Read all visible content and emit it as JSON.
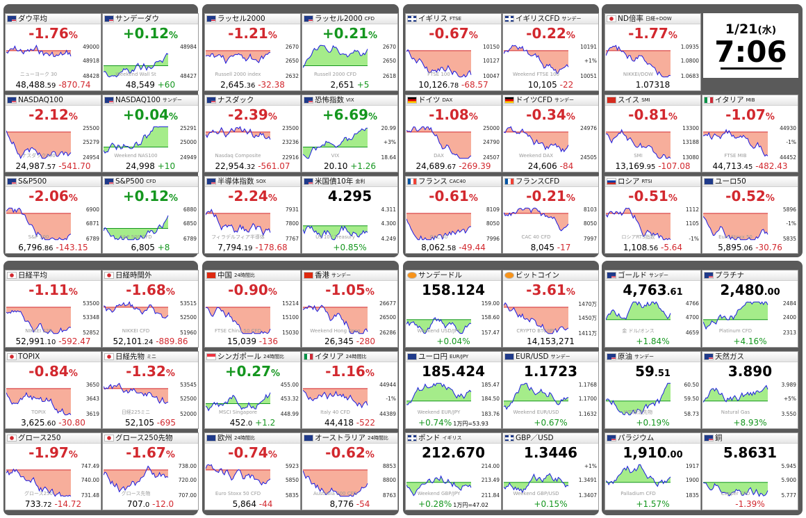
{
  "clock": {
    "date": "1/21",
    "weekday": "(水)",
    "time": "7:06"
  },
  "colors": {
    "up": "#14961e",
    "down": "#d2282e",
    "fill_up": "#9bea7d",
    "fill_down": "#f6a590",
    "line": "#1a1ae0",
    "panel": "#5a5a5a"
  },
  "tiles": [
    {
      "name": "ダウ平均",
      "sub": "",
      "flag": "us",
      "pct": "-1.76",
      "dir": "down",
      "price": "48,488",
      "dec": ".59",
      "chg": "-870.74",
      "ticks": [
        "49000",
        "48918",
        "48428"
      ],
      "watermark": "ニューヨーク 30"
    },
    {
      "name": "サンデーダウ",
      "sub": "",
      "flag": "us",
      "pct": "+0.12",
      "dir": "up",
      "price": "48,549",
      "dec": "",
      "chg": "+60",
      "ticks": [
        "48984",
        "",
        "48427"
      ],
      "watermark": "Weekend Wall St"
    },
    {
      "name": "ラッセル2000",
      "sub": "",
      "flag": "us",
      "pct": "-1.21",
      "dir": "down",
      "price": "2,645",
      "dec": ".36",
      "chg": "-32.38",
      "ticks": [
        "2670",
        "2650",
        "2632"
      ],
      "watermark": "Russell 2000 index"
    },
    {
      "name": "ラッセル2000",
      "sub": "CFD",
      "flag": "us",
      "pct": "+0.21",
      "dir": "up",
      "price": "2,651",
      "dec": "",
      "chg": "+5",
      "ticks": [
        "2670",
        "2650",
        "2618"
      ],
      "watermark": "Russell 2000 CFD"
    },
    {
      "name": "イギリス",
      "sub": "FTSE",
      "flag": "uk",
      "pct": "-0.67",
      "dir": "down",
      "price": "10,126",
      "dec": ".78",
      "chg": "-68.57",
      "ticks": [
        "10150",
        "10127",
        "10047"
      ],
      "watermark": "FTSE 100"
    },
    {
      "name": "イギリスCFD",
      "sub": "サンデー",
      "flag": "uk",
      "pct": "-0.22",
      "dir": "down",
      "price": "10,105",
      "dec": "",
      "chg": "-22",
      "ticks": [
        "10191",
        "+1%",
        "10051"
      ],
      "watermark": "Weekend FTSE 100"
    },
    {
      "name": "ND倍率",
      "sub": "日経÷DOW",
      "flag": "jp",
      "pct": "-1.77",
      "dir": "down",
      "price": "1.07318",
      "dec": "",
      "chg": "",
      "ticks": [
        "1.0935",
        "1.0800",
        "1.0683"
      ],
      "watermark": "NIKKEI/DOW"
    },
    {
      "name": "NASDAQ100",
      "sub": "",
      "flag": "us",
      "pct": "-2.12",
      "dir": "down",
      "price": "24,987",
      "dec": ".57",
      "chg": "-541.70",
      "ticks": [
        "25500",
        "25279",
        "24954"
      ],
      "watermark": "ナスダック100"
    },
    {
      "name": "NASDAQ100",
      "sub": "サンデー",
      "flag": "us",
      "pct": "+0.04",
      "dir": "up",
      "price": "24,998",
      "dec": "",
      "chg": "+10",
      "ticks": [
        "25291",
        "25000",
        "24949"
      ],
      "watermark": "Weekend NAS100"
    },
    {
      "name": "ナスダック",
      "sub": "",
      "flag": "us",
      "pct": "-2.39",
      "dir": "down",
      "price": "22,954",
      "dec": ".32",
      "chg": "-561.07",
      "ticks": [
        "23500",
        "23236",
        "22916"
      ],
      "watermark": "Nasdaq Composite"
    },
    {
      "name": "恐怖指数",
      "sub": "VIX",
      "flag": "us",
      "pct": "+6.69",
      "dir": "up",
      "price": "20.10",
      "dec": "",
      "chg": "+1.26",
      "ticks": [
        "20.99",
        "+3%",
        "18.64"
      ],
      "watermark": "VIX"
    },
    {
      "name": "ドイツ",
      "sub": "DAX",
      "flag": "de",
      "pct": "-1.08",
      "dir": "down",
      "price": "24,689",
      "dec": ".67",
      "chg": "-269.39",
      "ticks": [
        "25000",
        "24790",
        "24507"
      ],
      "watermark": "DAX"
    },
    {
      "name": "ドイツCFD",
      "sub": "サンデー",
      "flag": "de",
      "pct": "-0.34",
      "dir": "down",
      "price": "24,606",
      "dec": "",
      "chg": "-84",
      "ticks": [
        "24976",
        "",
        "24505"
      ],
      "watermark": "Weekend DAX"
    },
    {
      "name": "スイス",
      "sub": "SMI",
      "flag": "ch",
      "pct": "-0.81",
      "dir": "down",
      "price": "13,169",
      "dec": ".95",
      "chg": "-107.08",
      "ticks": [
        "13300",
        "13188",
        "13080"
      ],
      "watermark": "SMI"
    },
    {
      "name": "イタリア",
      "sub": "MIB",
      "flag": "it",
      "pct": "-1.07",
      "dir": "down",
      "price": "44,713",
      "dec": ".45",
      "chg": "-482.43",
      "ticks": [
        "44930",
        "-1%",
        "44452"
      ],
      "watermark": "FTSE MIB"
    },
    {
      "name": "S&P500",
      "sub": "",
      "flag": "us",
      "pct": "-2.06",
      "dir": "down",
      "price": "6,796",
      "dec": ".86",
      "chg": "-143.15",
      "ticks": [
        "6900",
        "6871",
        "6789"
      ],
      "watermark": "S&P 500"
    },
    {
      "name": "S&P500",
      "sub": "CFD",
      "flag": "us",
      "pct": "+0.12",
      "dir": "up",
      "price": "6,805",
      "dec": "",
      "chg": "+8",
      "ticks": [
        "6880",
        "6850",
        "6789"
      ],
      "watermark": "S&P 500 CFD"
    },
    {
      "name": "半導体指数",
      "sub": "SOX",
      "flag": "us",
      "pct": "-2.24",
      "dir": "down",
      "price": "7,794",
      "dec": ".19",
      "chg": "-178.68",
      "ticks": [
        "7931",
        "7800",
        "7767"
      ],
      "watermark": "フィラデルフィア半導体"
    },
    {
      "name": "米国債10年",
      "sub": "金利",
      "flag": "us",
      "pct": "4.295",
      "dir": "sym",
      "price": "",
      "dec": "",
      "chg": "+0.85",
      "ticks": [
        "4.311",
        "4.300",
        "4.249"
      ],
      "watermark": "US 10Y Treasury"
    },
    {
      "name": "フランス",
      "sub": "CAC40",
      "flag": "fr",
      "pct": "-0.61",
      "dir": "down",
      "price": "8,062",
      "dec": ".58",
      "chg": "-49.44",
      "ticks": [
        "8109",
        "8050",
        "7996"
      ],
      "watermark": "CAC 40"
    },
    {
      "name": "フランスCFD",
      "sub": "",
      "flag": "fr",
      "pct": "-0.21",
      "dir": "down",
      "price": "8,045",
      "dec": "",
      "chg": "-17",
      "ticks": [
        "8103",
        "8050",
        "7997"
      ],
      "watermark": "CAC 40 CFD"
    },
    {
      "name": "ロシア",
      "sub": "RTSI",
      "flag": "ru",
      "pct": "-0.51",
      "dir": "down",
      "price": "1,108",
      "dec": ".56",
      "chg": "-5.64",
      "ticks": [
        "1112",
        "1105",
        "-1%"
      ],
      "watermark": "ロシアRTS指数"
    },
    {
      "name": "ユーロ50",
      "sub": "",
      "flag": "eu",
      "pct": "-0.52",
      "dir": "down",
      "price": "5,895",
      "dec": ".06",
      "chg": "-30.76",
      "ticks": [
        "5896",
        "-1%",
        "5835"
      ],
      "watermark": "Euro Stoxx 50"
    },
    {
      "name": "日経平均",
      "sub": "",
      "flag": "jp",
      "pct": "-1.11",
      "dir": "down",
      "price": "52,991",
      "dec": ".10",
      "chg": "-592.47",
      "ticks": [
        "53500",
        "53348",
        "52852"
      ],
      "watermark": "NIKKEI 225"
    },
    {
      "name": "日経時間外",
      "sub": "",
      "flag": "jp",
      "pct": "-1.68",
      "dir": "down",
      "price": "52,101",
      "dec": ".24",
      "chg": "-889.86",
      "ticks": [
        "53515",
        "52500",
        "51960"
      ],
      "watermark": "NIKKEI CFD"
    },
    {
      "name": "中国",
      "sub": "24時間比",
      "flag": "cn",
      "pct": "-0.90",
      "dir": "down",
      "price": "15,039",
      "dec": "",
      "chg": "-136",
      "ticks": [
        "15214",
        "15100",
        "15030"
      ],
      "watermark": "FTSE China 50 CFD"
    },
    {
      "name": "香港",
      "sub": "サンデー",
      "flag": "hk",
      "pct": "-1.05",
      "dir": "down",
      "price": "26,345",
      "dec": "",
      "chg": "-280",
      "ticks": [
        "26677",
        "26500",
        "26286"
      ],
      "watermark": "Weekend Hong Kong"
    },
    {
      "name": "サンデードル",
      "sub": "",
      "flag": "btc",
      "pct": "158.124",
      "dir": "sym",
      "price": "",
      "dec": "",
      "chg": "+0.04",
      "ticks": [
        "159.00",
        "158.60",
        "157.47"
      ],
      "watermark": "Weekend USD/JPY"
    },
    {
      "name": "ビットコイン",
      "sub": "",
      "flag": "btc",
      "pct": "-3.61",
      "dir": "down",
      "price": "14,153,271",
      "dec": "",
      "chg": "",
      "ticks": [
        "1470万",
        "1450万",
        "1411万"
      ],
      "watermark": "CRYPTO BTC/JPY"
    },
    {
      "name": "ゴールド",
      "sub": "サンデー",
      "flag": "us",
      "pct": "4,763",
      "pctdec": ".61",
      "dir": "sym",
      "price": "",
      "dec": "",
      "chg": "+1.84",
      "ticks": [
        "4766",
        "4700",
        "4659"
      ],
      "watermark": "金 ドル/オンス"
    },
    {
      "name": "プラチナ",
      "sub": "",
      "flag": "us",
      "pct": "2,480",
      "pctdec": ".00",
      "dir": "sym",
      "price": "",
      "dec": "",
      "chg": "+4.16",
      "ticks": [
        "2484",
        "2400",
        "2313"
      ],
      "watermark": "Platinum CFD"
    },
    {
      "name": "TOPIX",
      "sub": "",
      "flag": "jp",
      "pct": "-0.84",
      "dir": "down",
      "price": "3,625",
      "dec": ".60",
      "chg": "-30.80",
      "ticks": [
        "3650",
        "3643",
        "3619"
      ],
      "watermark": "TOPIX"
    },
    {
      "name": "日経先物",
      "sub": "ミニ",
      "flag": "jp",
      "pct": "-1.32",
      "dir": "down",
      "price": "52,105",
      "dec": "",
      "chg": "-695",
      "ticks": [
        "53545",
        "52500",
        "52000"
      ],
      "watermark": "日経225ミニ"
    },
    {
      "name": "シンガポール",
      "sub": "24時間比",
      "flag": "sg",
      "pct": "+0.27",
      "dir": "up",
      "price": "452",
      "dec": ".0",
      "chg": "+1.2",
      "ticks": [
        "455.00",
        "453.32",
        "448.99"
      ],
      "watermark": "MSCI Singapore"
    },
    {
      "name": "イタリア",
      "sub": "24時間比",
      "flag": "it",
      "pct": "-1.16",
      "dir": "down",
      "price": "44,418",
      "dec": "",
      "chg": "-522",
      "ticks": [
        "44944",
        "-1%",
        "44389"
      ],
      "watermark": "Italy 40 CFD"
    },
    {
      "name": "ユーロ円",
      "sub": "EUR/JPY",
      "flag": "eu",
      "pct": "185.424",
      "dir": "sym",
      "price": "",
      "dec": "",
      "chg": "+0.74",
      "extra": "1万円=53.93",
      "ticks": [
        "185.47",
        "184.50",
        "183.76"
      ],
      "watermark": "Weekend EUR/JPY"
    },
    {
      "name": "EUR/USD",
      "sub": "サンデー",
      "flag": "eu",
      "pct": "1.1723",
      "dir": "sym",
      "price": "",
      "dec": "",
      "chg": "+0.67",
      "ticks": [
        "1.1768",
        "1.1700",
        "1.1632"
      ],
      "watermark": "Weekend EUR/USD"
    },
    {
      "name": "原油",
      "sub": "サンデー",
      "flag": "us",
      "pct": "59",
      "pctdec": ".51",
      "dir": "sym",
      "price": "",
      "dec": "",
      "chg": "+0.19",
      "ticks": [
        "60.50",
        "59.50",
        "58.73"
      ],
      "watermark": "WTI原油先物"
    },
    {
      "name": "天然ガス",
      "sub": "",
      "flag": "us",
      "pct": "3.890",
      "dir": "sym",
      "price": "",
      "dec": "",
      "chg": "+8.93",
      "ticks": [
        "3.989",
        "+5%",
        "3.550"
      ],
      "watermark": "Natural Gas"
    },
    {
      "name": "グロース250",
      "sub": "",
      "flag": "jp",
      "pct": "-1.97",
      "dir": "down",
      "price": "733",
      "dec": ".72",
      "chg": "-14.72",
      "ticks": [
        "747.49",
        "740.00",
        "731.48"
      ],
      "watermark": "グロース250"
    },
    {
      "name": "グロース250先物",
      "sub": "",
      "flag": "jp",
      "pct": "-1.67",
      "dir": "down",
      "price": "707",
      "dec": ".0",
      "chg": "-12.0",
      "ticks": [
        "738.00",
        "720.00",
        "707.00"
      ],
      "watermark": "グロース先物"
    },
    {
      "name": "欧州",
      "sub": "24時間比",
      "flag": "eu",
      "pct": "-0.74",
      "dir": "down",
      "price": "5,864",
      "dec": "",
      "chg": "-44",
      "ticks": [
        "5923",
        "5850",
        "5835"
      ],
      "watermark": "Euro Stoxx 50 CFD"
    },
    {
      "name": "オーストラリア",
      "sub": "24時間比",
      "flag": "au",
      "pct": "-0.62",
      "dir": "down",
      "price": "8,776",
      "dec": "",
      "chg": "-54",
      "ticks": [
        "8853",
        "8800",
        "8763"
      ],
      "watermark": "Australia 200 CFD"
    },
    {
      "name": "ポンド",
      "sub": "イギリス",
      "flag": "uk",
      "pct": "212.670",
      "dir": "sym",
      "price": "",
      "dec": "",
      "chg": "+0.28",
      "extra": "1万円=47.02",
      "ticks": [
        "214.00",
        "213.49",
        "211.84"
      ],
      "watermark": "Weekend GBP/JPY"
    },
    {
      "name": "GBP／USD",
      "sub": "",
      "flag": "uk",
      "pct": "1.3446",
      "dir": "sym",
      "price": "",
      "dec": "",
      "chg": "+0.15",
      "ticks": [
        "+1%",
        "1.3491",
        "1.3407"
      ],
      "watermark": "Weekend GBP/USD"
    },
    {
      "name": "パラジウム",
      "sub": "",
      "flag": "us",
      "pct": "1,910",
      "pctdec": ".00",
      "dir": "sym",
      "price": "",
      "dec": "",
      "chg": "+1.57",
      "ticks": [
        "1917",
        "1900",
        "1835"
      ],
      "watermark": "Palladium CFD"
    },
    {
      "name": "銅",
      "sub": "",
      "flag": "us",
      "pct": "5.8631",
      "dir": "sym",
      "price": "",
      "dec": "",
      "chg": "-1.39",
      "ticks": [
        "5.945",
        "5.900",
        "5.777"
      ],
      "watermark": "Copper CFD"
    }
  ]
}
